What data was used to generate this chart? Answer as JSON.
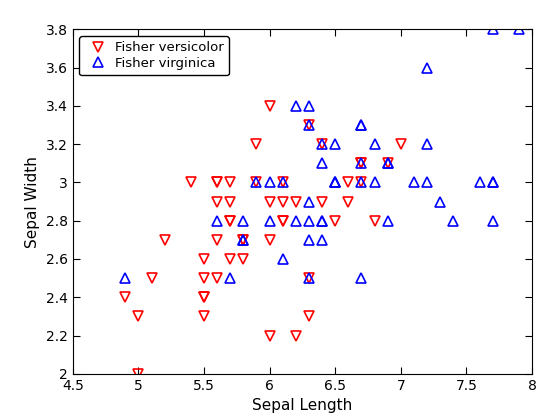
{
  "versicolor": {
    "sepal_length": [
      7.0,
      6.4,
      6.9,
      5.5,
      6.5,
      5.7,
      6.3,
      4.9,
      6.6,
      5.2,
      5.0,
      5.9,
      6.0,
      6.1,
      5.6,
      6.7,
      5.6,
      5.8,
      6.2,
      5.6,
      5.9,
      6.1,
      6.3,
      6.1,
      6.4,
      6.6,
      6.8,
      6.7,
      6.0,
      5.7,
      5.5,
      5.5,
      5.8,
      6.0,
      5.4,
      6.0,
      6.7,
      6.3,
      5.6,
      5.5,
      5.5,
      6.1,
      5.8,
      5.0,
      5.6,
      5.7,
      5.7,
      6.2,
      5.1,
      5.7
    ],
    "sepal_width": [
      3.2,
      3.2,
      3.1,
      2.3,
      2.8,
      2.8,
      3.3,
      2.4,
      2.9,
      2.7,
      2.0,
      3.0,
      2.2,
      2.9,
      2.9,
      3.1,
      3.0,
      2.7,
      2.2,
      2.5,
      3.2,
      2.8,
      2.5,
      2.8,
      2.9,
      3.0,
      2.8,
      3.0,
      2.9,
      2.6,
      2.4,
      2.4,
      2.7,
      2.7,
      3.0,
      3.4,
      3.1,
      2.3,
      3.0,
      2.5,
      2.6,
      3.0,
      2.6,
      2.3,
      2.7,
      3.0,
      2.9,
      2.9,
      2.5,
      2.8
    ]
  },
  "virginica": {
    "sepal_length": [
      6.3,
      5.8,
      7.1,
      6.3,
      6.5,
      7.6,
      4.9,
      7.3,
      6.7,
      7.2,
      6.5,
      6.4,
      6.8,
      5.7,
      5.8,
      6.4,
      6.5,
      7.7,
      6.0,
      6.9,
      5.6,
      7.7,
      6.3,
      6.7,
      7.2,
      6.2,
      6.1,
      6.4,
      7.2,
      7.4,
      7.9,
      6.4,
      6.3,
      6.1,
      7.7,
      6.3,
      6.4,
      6.0,
      6.9,
      6.7,
      6.9,
      5.8,
      6.8,
      6.7,
      6.7,
      6.3,
      6.5,
      6.2,
      5.9,
      7.7
    ],
    "sepal_width": [
      3.3,
      2.7,
      3.0,
      2.9,
      3.0,
      3.0,
      2.5,
      2.9,
      2.5,
      3.6,
      3.2,
      2.7,
      3.0,
      2.5,
      2.8,
      3.2,
      3.0,
      3.8,
      2.8,
      2.8,
      2.8,
      2.8,
      2.7,
      3.3,
      3.2,
      2.8,
      3.0,
      2.8,
      3.0,
      2.8,
      3.8,
      2.8,
      2.8,
      2.6,
      3.0,
      3.4,
      3.1,
      3.0,
      3.1,
      3.1,
      3.1,
      2.7,
      3.2,
      3.3,
      3.0,
      2.5,
      3.0,
      3.4,
      3.0,
      3.0
    ]
  },
  "xlabel": "Sepal Length",
  "ylabel": "Sepal Width",
  "xlim": [
    4.5,
    8.0
  ],
  "ylim": [
    2.0,
    3.8
  ],
  "xticks": [
    4.5,
    5.0,
    5.5,
    6.0,
    6.5,
    7.0,
    7.5,
    8.0
  ],
  "yticks": [
    2.0,
    2.2,
    2.4,
    2.6,
    2.8,
    3.0,
    3.2,
    3.4,
    3.6,
    3.8
  ],
  "versicolor_color": "#FF0000",
  "virginica_color": "#0000FF",
  "legend_labels": [
    "Fisher versicolor",
    "Fisher virginica"
  ],
  "markersize": 7,
  "markeredgewidth": 1.2
}
